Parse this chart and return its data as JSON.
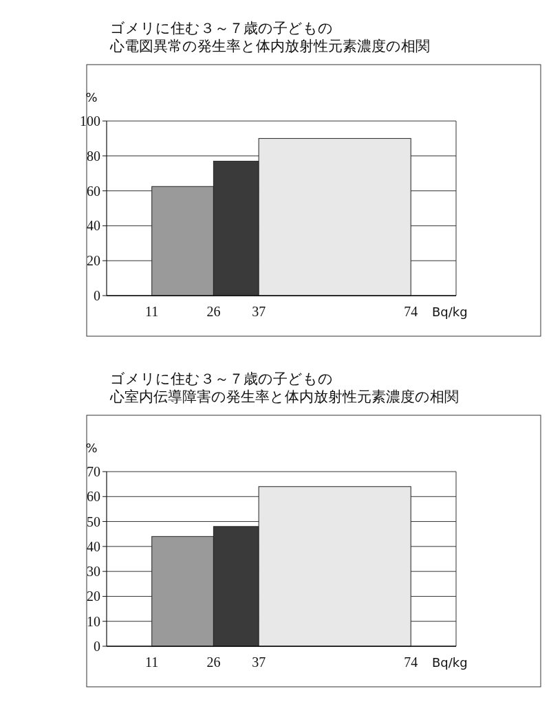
{
  "chart_data": [
    {
      "type": "histogram",
      "title": "ゴメリに住む３～７歳の子どもの",
      "subtitle": "心電図異常の発生率と体内放射性元素濃度の相関",
      "ylabel": "%",
      "xlabel": "Bq/kg",
      "bins": [
        11,
        26,
        37,
        74
      ],
      "values": [
        62.5,
        77,
        90
      ],
      "colors": [
        "#9a9a9a",
        "#3a3a3a",
        "#e8e8e8"
      ],
      "xlim": [
        0,
        85
      ],
      "xticks": [
        11,
        26,
        37,
        74
      ],
      "ylim": [
        0,
        100
      ],
      "yticks": [
        0,
        20,
        40,
        60,
        80,
        100
      ],
      "grid": "y"
    },
    {
      "type": "histogram",
      "title": "ゴメリに住む３～７歳の子どもの",
      "subtitle": "心室内伝導障害の発生率と体内放射性元素濃度の相関",
      "ylabel": "%",
      "xlabel": "Bq/kg",
      "bins": [
        11,
        26,
        37,
        74
      ],
      "values": [
        44,
        48,
        64
      ],
      "colors": [
        "#9a9a9a",
        "#3a3a3a",
        "#e8e8e8"
      ],
      "xlim": [
        0,
        85
      ],
      "xticks": [
        11,
        26,
        37,
        74
      ],
      "ylim": [
        0,
        70
      ],
      "yticks": [
        0,
        10,
        20,
        30,
        40,
        50,
        60,
        70
      ],
      "grid": "y"
    }
  ]
}
